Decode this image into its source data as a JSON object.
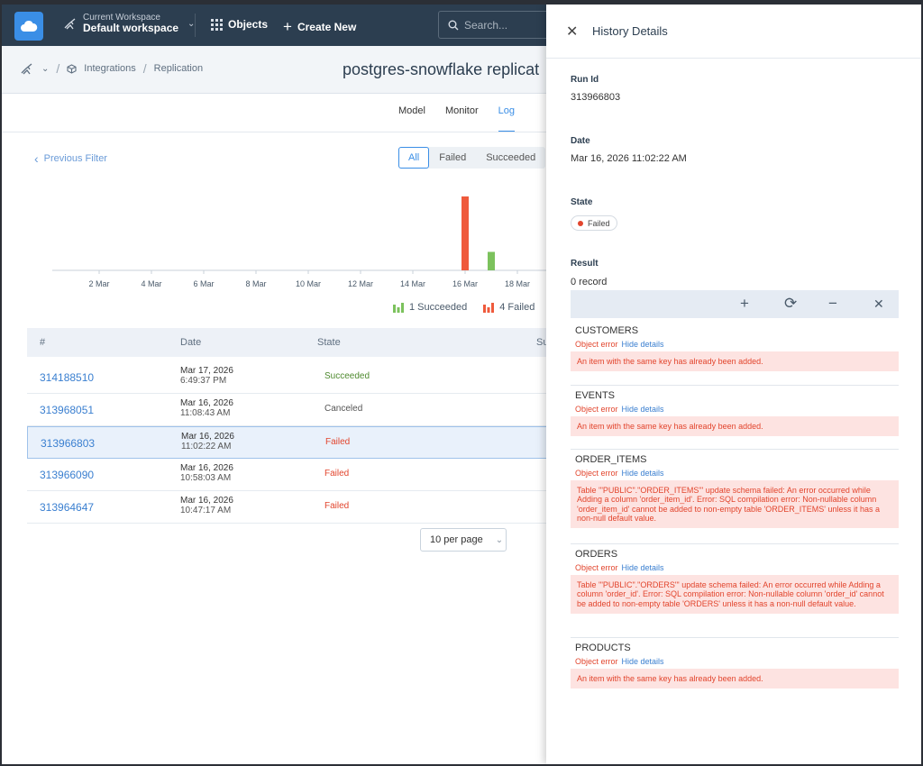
{
  "topbar": {
    "workspace_caption": "Current Workspace",
    "workspace_name": "Default workspace",
    "objects_label": "Objects",
    "create_label": "Create New",
    "search_placeholder": "Search..."
  },
  "breadcrumb": {
    "items": [
      "Integrations",
      "Replication"
    ],
    "separator": "/",
    "page_title": "postgres-snowflake replicat"
  },
  "tabs": [
    "Model",
    "Monitor",
    "Log"
  ],
  "active_tab": "Log",
  "filter": {
    "previous_filter": "Previous Filter",
    "segments": [
      "All",
      "Failed",
      "Succeeded"
    ],
    "active_segment": "All"
  },
  "chart_data": {
    "type": "bar",
    "categories": [
      "2 Mar",
      "4 Mar",
      "6 Mar",
      "8 Mar",
      "10 Mar",
      "12 Mar",
      "14 Mar",
      "16 Mar",
      "18 Mar"
    ],
    "series": [
      {
        "name": "Succeeded",
        "color": "#7cc25d",
        "values": [
          0,
          0,
          0,
          0,
          0,
          0,
          0,
          1,
          0
        ],
        "offset_days": 1
      },
      {
        "name": "Failed",
        "color": "#ef5a3c",
        "values": [
          0,
          0,
          0,
          0,
          0,
          0,
          0,
          4,
          0
        ],
        "offset_days": 0
      }
    ],
    "legend": [
      {
        "label": "1 Succeeded",
        "color": "#7cc25d"
      },
      {
        "label": "4 Failed",
        "color": "#ef5a3c"
      }
    ],
    "legend_position": "bottom-right",
    "ylim": [
      0,
      4
    ]
  },
  "table": {
    "columns": [
      "#",
      "Date",
      "State",
      "Su"
    ],
    "rows": [
      {
        "id": "314188510",
        "date": "Mar 17, 2026",
        "time": "6:49:37 PM",
        "state": "Succeeded",
        "state_color": "#4e8a2e"
      },
      {
        "id": "313968051",
        "date": "Mar 16, 2026",
        "time": "11:08:43 AM",
        "state": "Canceled",
        "state_color": "#555555"
      },
      {
        "id": "313966803",
        "date": "Mar 16, 2026",
        "time": "11:02:22 AM",
        "state": "Failed",
        "state_color": "#e2452d",
        "selected": true
      },
      {
        "id": "313966090",
        "date": "Mar 16, 2026",
        "time": "10:58:03 AM",
        "state": "Failed",
        "state_color": "#e2452d"
      },
      {
        "id": "313964647",
        "date": "Mar 16, 2026",
        "time": "10:47:17 AM",
        "state": "Failed",
        "state_color": "#e2452d"
      }
    ],
    "per_page": "10 per page"
  },
  "panel": {
    "title": "History Details",
    "run_id_label": "Run Id",
    "run_id": "313966803",
    "date_label": "Date",
    "date": "Mar 16, 2026 11:02:22 AM",
    "state_label": "State",
    "state": "Failed",
    "result_label": "Result",
    "result_value": "0 record",
    "objects": [
      {
        "name": "CUSTOMERS",
        "meta": "Object error",
        "link": "Hide details",
        "error": "An item with the same key has already been added."
      },
      {
        "name": "EVENTS",
        "meta": "Object error",
        "link": "Hide details",
        "error": "An item with the same key has already been added."
      },
      {
        "name": "ORDER_ITEMS",
        "meta": "Object error",
        "link": "Hide details",
        "error": "Table '\"PUBLIC\".\"ORDER_ITEMS\"' update schema failed: An error occurred while Adding a column 'order_item_id'. Error: SQL compilation error: Non-nullable column 'order_item_id' cannot be added to non-empty table 'ORDER_ITEMS' unless it has a non-null default value."
      },
      {
        "name": "ORDERS",
        "meta": "Object error",
        "link": "Hide details",
        "error": "Table '\"PUBLIC\".\"ORDERS\"' update schema failed: An error occurred while Adding a column 'order_id'. Error: SQL compilation error: Non-nullable column 'order_id' cannot be added to non-empty table 'ORDERS' unless it has a non-null default value."
      },
      {
        "name": "PRODUCTS",
        "meta": "Object error",
        "link": "Hide details",
        "error": "An item with the same key has already been added."
      }
    ]
  }
}
